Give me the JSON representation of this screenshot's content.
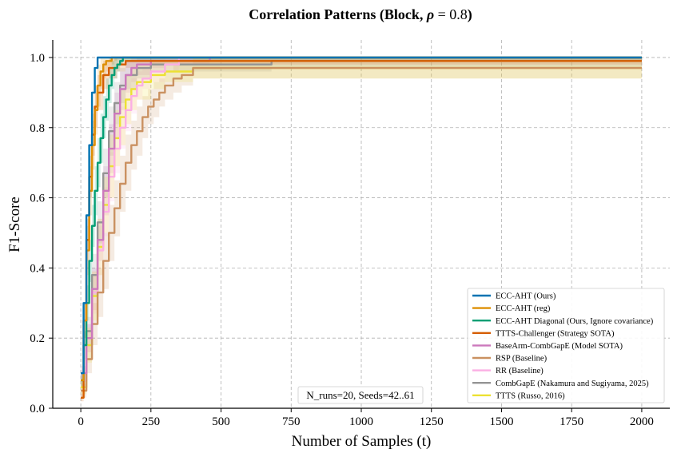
{
  "chart_data": {
    "type": "line",
    "title": "Correlation Patterns (Block, ρ = 0.8)",
    "title_parts": {
      "prefix": "Correlation Patterns (Block, ",
      "rho": "ρ",
      "eq": " = ",
      "val": "0.8",
      "suffix": ")"
    },
    "xlabel": "Number of Samples (t)",
    "ylabel": "F1-Score",
    "xlim": [
      -100,
      2100
    ],
    "ylim": [
      0.0,
      1.05
    ],
    "xticks": [
      0,
      250,
      500,
      750,
      1000,
      1250,
      1500,
      1750,
      2000
    ],
    "yticks": [
      0.0,
      0.2,
      0.4,
      0.6,
      0.8,
      1.0
    ],
    "xtick_labels": [
      "0",
      "250",
      "500",
      "750",
      "1000",
      "1250",
      "1500",
      "1750",
      "2000"
    ],
    "ytick_labels": [
      "0.0",
      "0.2",
      "0.4",
      "0.6",
      "0.8",
      "1.0"
    ],
    "grid": true,
    "legend_position": "lower-right",
    "annotation": "N_runs=20, Seeds=42..61",
    "series": [
      {
        "name": "ECC-AHT (Ours)",
        "color": "#0173b2",
        "x": [
          0,
          10,
          20,
          30,
          40,
          50,
          60,
          70,
          2000
        ],
        "y": [
          0.1,
          0.3,
          0.55,
          0.75,
          0.9,
          0.97,
          1.0,
          1.0,
          1.0
        ],
        "lower": [
          0.1,
          0.3,
          0.55,
          0.75,
          0.9,
          0.97,
          1.0,
          1.0,
          1.0
        ],
        "upper": [
          0.1,
          0.3,
          0.55,
          0.75,
          0.9,
          0.97,
          1.0,
          1.0,
          1.0
        ]
      },
      {
        "name": "ECC-AHT (reg)",
        "color": "#de8f05",
        "x": [
          0,
          10,
          20,
          30,
          40,
          50,
          60,
          70,
          80,
          90,
          100,
          110,
          120,
          130,
          2000
        ],
        "y": [
          0.08,
          0.25,
          0.45,
          0.62,
          0.75,
          0.85,
          0.92,
          0.96,
          0.98,
          0.99,
          0.99,
          1.0,
          1.0,
          1.0,
          1.0
        ],
        "lower": [
          0.06,
          0.2,
          0.38,
          0.55,
          0.68,
          0.78,
          0.86,
          0.91,
          0.94,
          0.96,
          0.97,
          0.98,
          0.99,
          1.0,
          1.0
        ],
        "upper": [
          0.1,
          0.3,
          0.52,
          0.69,
          0.82,
          0.92,
          0.98,
          1.0,
          1.0,
          1.0,
          1.0,
          1.0,
          1.0,
          1.0,
          1.0
        ]
      },
      {
        "name": "ECC-AHT Diagonal (Ours, Ignore covariance)",
        "color": "#029e73",
        "x": [
          0,
          10,
          20,
          30,
          40,
          50,
          60,
          70,
          80,
          90,
          100,
          110,
          120,
          130,
          140,
          150,
          2000
        ],
        "y": [
          0.08,
          0.18,
          0.3,
          0.42,
          0.52,
          0.62,
          0.7,
          0.77,
          0.83,
          0.88,
          0.92,
          0.95,
          0.97,
          0.98,
          0.99,
          1.0,
          1.0
        ],
        "lower": [
          0.06,
          0.14,
          0.25,
          0.36,
          0.46,
          0.55,
          0.63,
          0.7,
          0.77,
          0.82,
          0.87,
          0.91,
          0.94,
          0.96,
          0.98,
          0.99,
          0.99
        ],
        "upper": [
          0.1,
          0.22,
          0.35,
          0.48,
          0.58,
          0.69,
          0.77,
          0.84,
          0.89,
          0.94,
          0.97,
          0.99,
          1.0,
          1.0,
          1.0,
          1.0,
          1.0
        ]
      },
      {
        "name": "TTTS-Challenger (Strategy SOTA)",
        "color": "#d55e00",
        "x": [
          0,
          10,
          20,
          30,
          40,
          50,
          60,
          80,
          100,
          130,
          160,
          200,
          250,
          330,
          2000
        ],
        "y": [
          0.03,
          0.25,
          0.48,
          0.66,
          0.78,
          0.86,
          0.9,
          0.95,
          0.97,
          0.98,
          0.99,
          0.99,
          0.99,
          0.99,
          0.99
        ],
        "lower": [
          0.02,
          0.2,
          0.42,
          0.6,
          0.72,
          0.8,
          0.85,
          0.91,
          0.94,
          0.96,
          0.97,
          0.98,
          0.98,
          0.98,
          0.98
        ],
        "upper": [
          0.04,
          0.3,
          0.54,
          0.72,
          0.84,
          0.92,
          0.95,
          0.99,
          1.0,
          1.0,
          1.0,
          1.0,
          1.0,
          1.0,
          1.0
        ]
      },
      {
        "name": "BaseArm-CombGapE (Model SOTA)",
        "color": "#cc78bc",
        "x": [
          0,
          20,
          40,
          60,
          80,
          100,
          120,
          140,
          160,
          180,
          200,
          250,
          300,
          460,
          2000
        ],
        "y": [
          0.1,
          0.2,
          0.34,
          0.48,
          0.62,
          0.74,
          0.84,
          0.91,
          0.95,
          0.97,
          0.98,
          0.99,
          0.99,
          1.0,
          1.0
        ],
        "lower": [
          0.08,
          0.16,
          0.28,
          0.42,
          0.55,
          0.67,
          0.77,
          0.85,
          0.9,
          0.93,
          0.95,
          0.97,
          0.98,
          0.99,
          0.99
        ],
        "upper": [
          0.12,
          0.24,
          0.4,
          0.54,
          0.69,
          0.81,
          0.9,
          0.96,
          0.99,
          1.0,
          1.0,
          1.0,
          1.0,
          1.0,
          1.0
        ]
      },
      {
        "name": "RSP (Baseline)",
        "color": "#ca9161",
        "x": [
          0,
          20,
          40,
          60,
          80,
          100,
          120,
          140,
          160,
          180,
          200,
          220,
          240,
          260,
          280,
          300,
          330,
          360,
          400,
          450,
          2000
        ],
        "y": [
          0.05,
          0.14,
          0.24,
          0.33,
          0.42,
          0.5,
          0.57,
          0.64,
          0.7,
          0.75,
          0.79,
          0.83,
          0.86,
          0.88,
          0.9,
          0.92,
          0.94,
          0.95,
          0.97,
          0.97,
          0.97
        ],
        "lower": [
          0.03,
          0.1,
          0.18,
          0.26,
          0.34,
          0.42,
          0.49,
          0.56,
          0.62,
          0.68,
          0.72,
          0.77,
          0.81,
          0.83,
          0.86,
          0.88,
          0.9,
          0.92,
          0.94,
          0.94,
          0.94
        ],
        "upper": [
          0.07,
          0.18,
          0.3,
          0.4,
          0.5,
          0.58,
          0.65,
          0.72,
          0.78,
          0.82,
          0.86,
          0.89,
          0.91,
          0.93,
          0.94,
          0.96,
          0.98,
          0.98,
          1.0,
          1.0,
          1.0
        ]
      },
      {
        "name": "RR (Baseline)",
        "color": "#fbafe4",
        "x": [
          0,
          20,
          40,
          60,
          80,
          100,
          120,
          140,
          160,
          180,
          200,
          220,
          250,
          300,
          350,
          2000
        ],
        "y": [
          0.08,
          0.2,
          0.33,
          0.45,
          0.56,
          0.66,
          0.74,
          0.8,
          0.85,
          0.89,
          0.92,
          0.94,
          0.96,
          0.98,
          1.0,
          1.0
        ],
        "lower": [
          0.06,
          0.16,
          0.27,
          0.38,
          0.49,
          0.59,
          0.67,
          0.74,
          0.79,
          0.84,
          0.88,
          0.91,
          0.93,
          0.96,
          0.98,
          0.99
        ],
        "upper": [
          0.1,
          0.24,
          0.39,
          0.52,
          0.63,
          0.73,
          0.81,
          0.86,
          0.91,
          0.94,
          0.96,
          0.97,
          0.99,
          1.0,
          1.0,
          1.0
        ]
      },
      {
        "name": "CombGapE (Nakamura and Sugiyama, 2025)",
        "color": "#949494",
        "x": [
          0,
          20,
          40,
          60,
          80,
          100,
          120,
          140,
          160,
          200,
          250,
          300,
          400,
          680,
          2000
        ],
        "y": [
          0.08,
          0.22,
          0.38,
          0.53,
          0.67,
          0.79,
          0.87,
          0.92,
          0.95,
          0.97,
          0.98,
          0.98,
          0.98,
          0.99,
          0.99
        ],
        "lower": [
          0.06,
          0.18,
          0.32,
          0.47,
          0.6,
          0.72,
          0.81,
          0.87,
          0.91,
          0.94,
          0.96,
          0.96,
          0.96,
          0.97,
          0.97
        ],
        "upper": [
          0.1,
          0.26,
          0.44,
          0.59,
          0.74,
          0.86,
          0.93,
          0.97,
          0.99,
          1.0,
          1.0,
          1.0,
          1.0,
          1.0,
          1.0
        ]
      },
      {
        "name": "TTTS (Russo, 2016)",
        "color": "#ece133",
        "x": [
          0,
          20,
          40,
          60,
          80,
          100,
          120,
          140,
          160,
          180,
          200,
          250,
          300,
          400,
          2000
        ],
        "y": [
          0.06,
          0.18,
          0.32,
          0.46,
          0.58,
          0.69,
          0.77,
          0.83,
          0.88,
          0.91,
          0.93,
          0.95,
          0.96,
          0.97,
          0.97
        ],
        "lower": [
          0.04,
          0.13,
          0.25,
          0.38,
          0.5,
          0.6,
          0.69,
          0.75,
          0.81,
          0.85,
          0.88,
          0.91,
          0.93,
          0.94,
          0.94
        ],
        "upper": [
          0.08,
          0.23,
          0.39,
          0.54,
          0.66,
          0.78,
          0.85,
          0.91,
          0.95,
          0.97,
          0.98,
          0.99,
          0.99,
          1.0,
          1.0
        ]
      }
    ]
  }
}
